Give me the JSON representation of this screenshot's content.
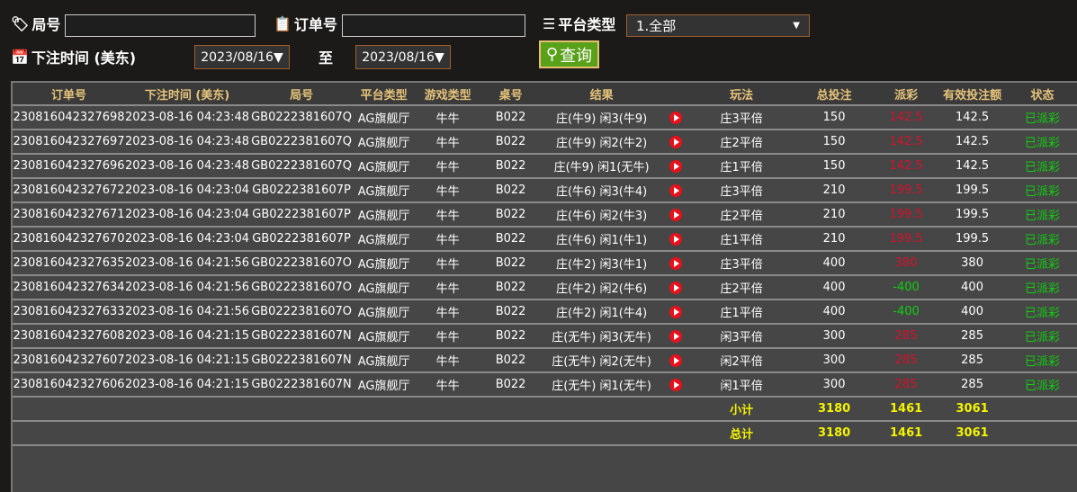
{
  "filters": {
    "round_label": "局号",
    "round_value": "",
    "order_label": "订单号",
    "order_value": "",
    "platform_label": "平台类型",
    "platform_value": "1.全部",
    "time_label": "下注时间 (美东)",
    "date_from": "2023/08/16▼",
    "to_label": "至",
    "date_to": "2023/08/16▼",
    "query_label": "查询"
  },
  "table": {
    "headers": [
      "订单号",
      "下注时间 (美东)",
      "局号",
      "平台类型",
      "游戏类型",
      "桌号",
      "结果",
      "",
      "玩法",
      "总投注",
      "派彩",
      "有效投注额",
      "状态"
    ],
    "rows": [
      [
        "230816042327698",
        "2023-08-16 04:23:48",
        "GB0222381607Q",
        "AG旗舰厅",
        "牛牛",
        "B022",
        "庄(牛9) 闲3(牛9)",
        "庄3平倍",
        "150",
        "142.5",
        "142.5",
        "已派彩",
        "red"
      ],
      [
        "230816042327697",
        "2023-08-16 04:23:48",
        "GB0222381607Q",
        "AG旗舰厅",
        "牛牛",
        "B022",
        "庄(牛9) 闲2(牛2)",
        "庄2平倍",
        "150",
        "142.5",
        "142.5",
        "已派彩",
        "red"
      ],
      [
        "230816042327696",
        "2023-08-16 04:23:48",
        "GB0222381607Q",
        "AG旗舰厅",
        "牛牛",
        "B022",
        "庄(牛9) 闲1(无牛)",
        "庄1平倍",
        "150",
        "142.5",
        "142.5",
        "已派彩",
        "red"
      ],
      [
        "230816042327672",
        "2023-08-16 04:23:04",
        "GB0222381607P",
        "AG旗舰厅",
        "牛牛",
        "B022",
        "庄(牛6) 闲3(牛4)",
        "庄3平倍",
        "210",
        "199.5",
        "199.5",
        "已派彩",
        "red"
      ],
      [
        "230816042327671",
        "2023-08-16 04:23:04",
        "GB0222381607P",
        "AG旗舰厅",
        "牛牛",
        "B022",
        "庄(牛6) 闲2(牛3)",
        "庄2平倍",
        "210",
        "199.5",
        "199.5",
        "已派彩",
        "red"
      ],
      [
        "230816042327670",
        "2023-08-16 04:23:04",
        "GB0222381607P",
        "AG旗舰厅",
        "牛牛",
        "B022",
        "庄(牛6) 闲1(牛1)",
        "庄1平倍",
        "210",
        "199.5",
        "199.5",
        "已派彩",
        "red"
      ],
      [
        "230816042327635",
        "2023-08-16 04:21:56",
        "GB0222381607O",
        "AG旗舰厅",
        "牛牛",
        "B022",
        "庄(牛2) 闲3(牛1)",
        "庄3平倍",
        "400",
        "380",
        "380",
        "已派彩",
        "red"
      ],
      [
        "230816042327634",
        "2023-08-16 04:21:56",
        "GB0222381607O",
        "AG旗舰厅",
        "牛牛",
        "B022",
        "庄(牛2) 闲2(牛6)",
        "庄2平倍",
        "400",
        "-400",
        "400",
        "已派彩",
        "grn"
      ],
      [
        "230816042327633",
        "2023-08-16 04:21:56",
        "GB0222381607O",
        "AG旗舰厅",
        "牛牛",
        "B022",
        "庄(牛2) 闲1(牛4)",
        "庄1平倍",
        "400",
        "-400",
        "400",
        "已派彩",
        "grn"
      ],
      [
        "230816042327608",
        "2023-08-16 04:21:15",
        "GB0222381607N",
        "AG旗舰厅",
        "牛牛",
        "B022",
        "庄(无牛) 闲3(无牛)",
        "闲3平倍",
        "300",
        "285",
        "285",
        "已派彩",
        "red"
      ],
      [
        "230816042327607",
        "2023-08-16 04:21:15",
        "GB0222381607N",
        "AG旗舰厅",
        "牛牛",
        "B022",
        "庄(无牛) 闲2(无牛)",
        "闲2平倍",
        "300",
        "285",
        "285",
        "已派彩",
        "red"
      ],
      [
        "230816042327606",
        "2023-08-16 04:21:15",
        "GB0222381607N",
        "AG旗舰厅",
        "牛牛",
        "B022",
        "庄(无牛) 闲1(无牛)",
        "闲1平倍",
        "300",
        "285",
        "285",
        "已派彩",
        "red"
      ]
    ],
    "subtotal": {
      "label": "小计",
      "bet": "3180",
      "payout": "1461",
      "valid": "3061"
    },
    "total": {
      "label": "总计",
      "bet": "3180",
      "payout": "1461",
      "valid": "3061"
    }
  },
  "colors": {
    "accent": "#5aa11a",
    "header_text": "#e6c37a",
    "payout_positive": "#d5102a",
    "payout_negative": "#10d010",
    "status": "#10d010",
    "totals": "#f4f400"
  }
}
